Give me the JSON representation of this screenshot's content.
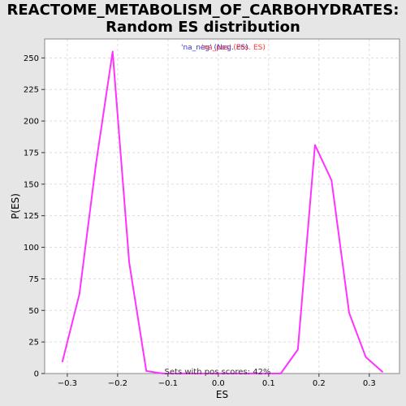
{
  "title_line1": "REACTOME_METABOLISM_OF_CARBOHYDRATES:",
  "title_line2": "Random ES distribution",
  "chart_data": {
    "type": "line",
    "xlabel": "ES",
    "ylabel": "P(ES)",
    "xlim": [
      -0.345,
      0.36
    ],
    "ylim": [
      0,
      265
    ],
    "x_ticks": [
      -0.3,
      -0.2,
      -0.1,
      0.0,
      0.1,
      0.2,
      0.3
    ],
    "x_tick_labels": [
      "−0.3",
      "−0.2",
      "−0.1",
      "0.0",
      "0.1",
      "0.2",
      "0.3"
    ],
    "y_ticks": [
      0,
      25,
      50,
      75,
      100,
      125,
      150,
      175,
      200,
      225,
      250
    ],
    "y_tick_labels": [
      "0",
      "25",
      "50",
      "75",
      "100",
      "125",
      "150",
      "175",
      "200",
      "225",
      "250"
    ],
    "grid": true,
    "legend": {
      "placement": "top-center",
      "entries": [
        {
          "text": "'na_neg' (Neg. ES)",
          "color": "#3333cc"
        },
        {
          "text": "'na_pos' (Pos. ES)",
          "color": "#ff3333"
        }
      ]
    },
    "annotation": "Sets with pos scores: 42%",
    "series": [
      {
        "color": "#ff33ff",
        "x": [
          -0.31,
          -0.276,
          -0.243,
          -0.21,
          -0.177,
          -0.143,
          -0.11,
          -0.077,
          -0.043,
          -0.01,
          0.024,
          0.057,
          0.09,
          0.124,
          0.158,
          0.192,
          0.225,
          0.26,
          0.293,
          0.327
        ],
        "y": [
          9,
          63,
          166,
          255,
          88,
          2,
          0,
          0,
          0,
          0,
          0,
          0,
          0,
          0,
          19,
          181,
          153,
          48,
          13,
          1
        ]
      }
    ]
  }
}
